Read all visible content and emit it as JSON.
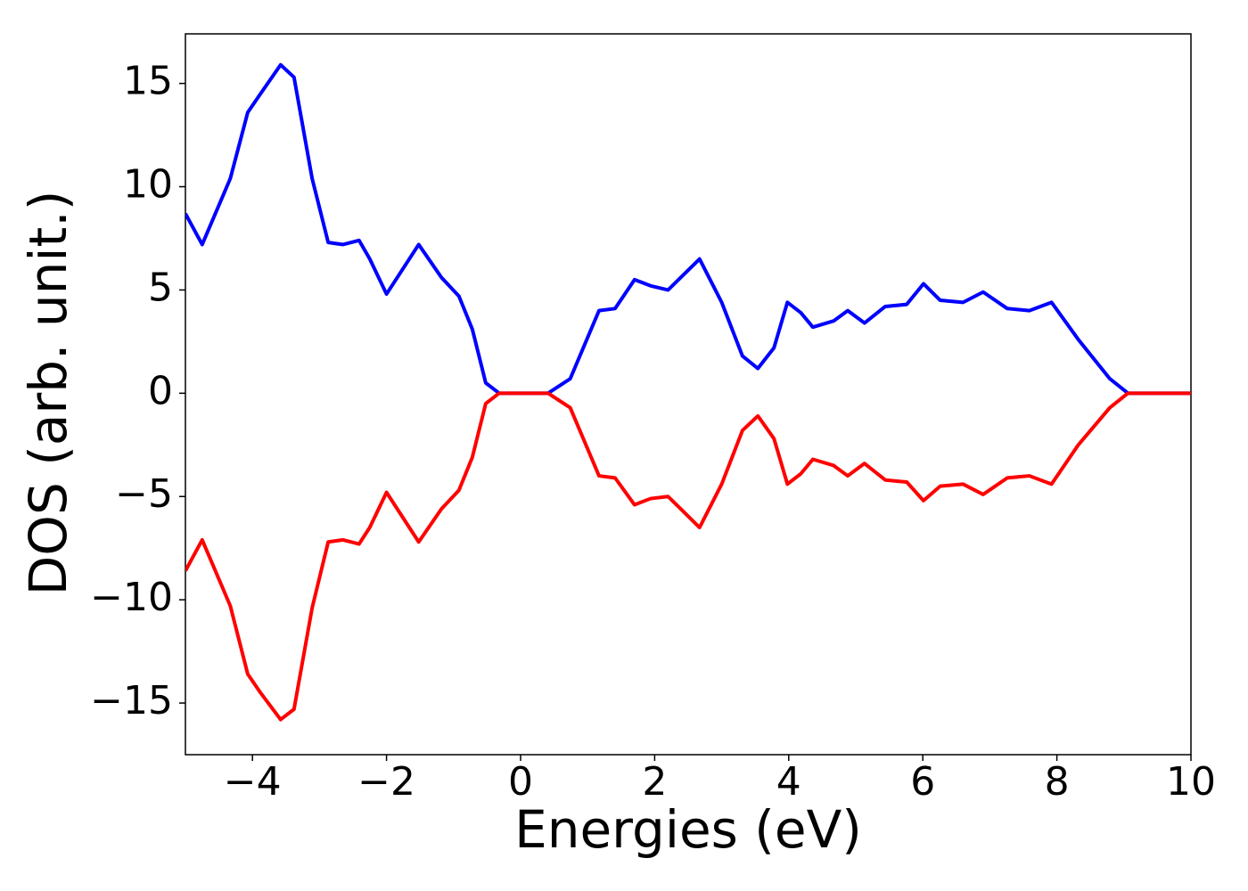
{
  "chart_data": {
    "type": "line",
    "x_label": "Energies (eV)",
    "y_label": "DOS (arb. unit.)",
    "x": [
      -5,
      -4.75,
      -4.33,
      -4.07,
      -3.88,
      -3.58,
      -3.38,
      -3.11,
      -2.87,
      -2.65,
      -2.41,
      -2.25,
      -2.0,
      -1.52,
      -1.18,
      -0.92,
      -0.72,
      -0.52,
      -0.32,
      0.41,
      0.74,
      1.17,
      1.41,
      1.7,
      1.94,
      2.2,
      2.67,
      3.0,
      3.31,
      3.54,
      3.78,
      3.98,
      4.18,
      4.36,
      4.67,
      4.88,
      5.13,
      5.44,
      5.76,
      6.01,
      6.26,
      6.6,
      6.9,
      7.26,
      7.59,
      7.92,
      8.32,
      8.79,
      9.06,
      10
    ],
    "series": [
      {
        "color": "#0000ff",
        "values": [
          8.7,
          7.2,
          10.4,
          13.6,
          14.5,
          15.9,
          15.3,
          10.4,
          7.3,
          7.2,
          7.4,
          6.5,
          4.8,
          7.2,
          5.6,
          4.7,
          3.1,
          0.5,
          0,
          0,
          0.7,
          4.0,
          4.1,
          5.5,
          5.2,
          5.0,
          6.5,
          4.4,
          1.8,
          1.2,
          2.2,
          4.4,
          3.9,
          3.2,
          3.5,
          4.0,
          3.4,
          4.2,
          4.3,
          5.3,
          4.5,
          4.4,
          4.9,
          4.1,
          4.0,
          4.4,
          2.6,
          0.7,
          0,
          0
        ]
      },
      {
        "color": "#ff0000",
        "values": [
          -8.6,
          -7.1,
          -10.3,
          -13.6,
          -14.5,
          -15.8,
          -15.3,
          -10.4,
          -7.2,
          -7.1,
          -7.3,
          -6.5,
          -4.8,
          -7.2,
          -5.6,
          -4.7,
          -3.1,
          -0.5,
          0,
          0,
          -0.7,
          -4.0,
          -4.1,
          -5.4,
          -5.1,
          -5.0,
          -6.5,
          -4.4,
          -1.8,
          -1.1,
          -2.2,
          -4.4,
          -3.9,
          -3.2,
          -3.5,
          -4.0,
          -3.4,
          -4.2,
          -4.3,
          -5.2,
          -4.5,
          -4.4,
          -4.9,
          -4.1,
          -4.0,
          -4.4,
          -2.5,
          -0.7,
          0,
          0
        ]
      }
    ],
    "xlim": [
      -5,
      10
    ],
    "xticks": [
      {
        "value": -4,
        "label": "−4"
      },
      {
        "value": -2,
        "label": "−2"
      },
      0,
      2,
      4,
      6,
      8,
      10
    ],
    "ylim": [
      -17.5,
      17.4
    ],
    "yticks": [
      {
        "value": -15,
        "label": "−15"
      },
      {
        "value": -10,
        "label": "−10"
      },
      {
        "value": -5,
        "label": "−5"
      },
      0,
      5,
      10,
      15
    ],
    "grid": false
  }
}
